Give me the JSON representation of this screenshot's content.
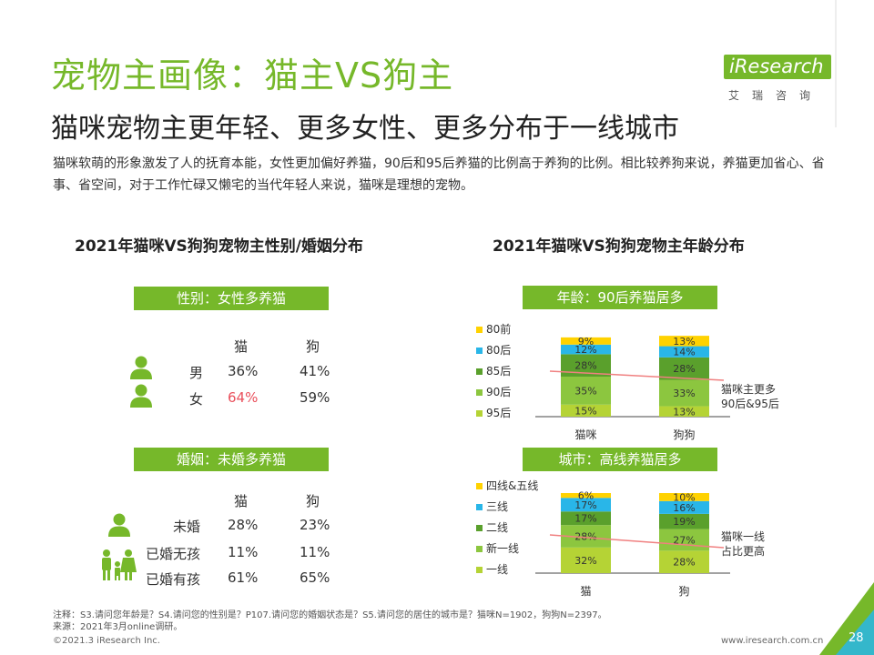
{
  "header": {
    "title": "宠物主画像：猫主VS狗主",
    "subtitle": "猫咪宠物主更年轻、更多女性、更多分布于一线城市",
    "intro": "猫咪软萌的形象激发了人的抚育本能，女性更加偏好养猫，90后和95后养猫的比例高于养狗的比例。相比较养狗来说，养猫更加省心、省事、省空间，对于工作忙碌又懒宅的当代年轻人来说，猫咪是理想的宠物。"
  },
  "logo": {
    "word": "iResearch",
    "cn": "艾瑞咨询"
  },
  "left_section": {
    "title": "2021年猫咪VS狗狗宠物主性别/婚姻分布",
    "gender": {
      "banner": "性别：女性多养猫",
      "col_cat": "猫",
      "col_dog": "狗",
      "rows": [
        {
          "label": "男",
          "cat": "36%",
          "dog": "41%"
        },
        {
          "label": "女",
          "cat": "64%",
          "dog": "59%"
        }
      ],
      "highlight_color": "#e94f5b"
    },
    "marriage": {
      "banner": "婚姻：未婚多养猫",
      "col_cat": "猫",
      "col_dog": "狗",
      "rows": [
        {
          "label": "未婚",
          "cat": "28%",
          "dog": "23%"
        },
        {
          "label": "已婚无孩",
          "cat": "11%",
          "dog": "11%"
        },
        {
          "label": "已婚有孩",
          "cat": "61%",
          "dog": "65%"
        }
      ]
    }
  },
  "right_section": {
    "title": "2021年猫咪VS狗狗宠物主年龄分布"
  },
  "chart_data": [
    {
      "type": "bar",
      "stacked": true,
      "banner": "年龄：90后养猫居多",
      "categories": [
        "猫咪",
        "狗狗"
      ],
      "series": [
        {
          "name": "95后",
          "color": "#b5d335",
          "values": [
            15,
            13
          ]
        },
        {
          "name": "90后",
          "color": "#8cc63f",
          "values": [
            35,
            33
          ]
        },
        {
          "name": "85后",
          "color": "#5aa02c",
          "values": [
            28,
            28
          ]
        },
        {
          "name": "80后",
          "color": "#29b6e8",
          "values": [
            12,
            14
          ]
        },
        {
          "name": "80前",
          "color": "#ffd200",
          "values": [
            9,
            13
          ]
        }
      ],
      "annotation": "猫咪主更多\n90后&95后",
      "annotation_line_color": "#f08080"
    },
    {
      "type": "bar",
      "stacked": true,
      "banner": "城市：高线养猫居多",
      "categories": [
        "猫",
        "狗"
      ],
      "series": [
        {
          "name": "一线",
          "color": "#b5d335",
          "values": [
            32,
            28
          ]
        },
        {
          "name": "新一线",
          "color": "#8cc63f",
          "values": [
            28,
            27
          ]
        },
        {
          "name": "二线",
          "color": "#5aa02c",
          "values": [
            17,
            19
          ]
        },
        {
          "name": "三线",
          "color": "#29b6e8",
          "values": [
            17,
            16
          ]
        },
        {
          "name": "四线&五线",
          "color": "#ffd200",
          "values": [
            6,
            10
          ]
        }
      ],
      "annotation": "猫咪一线\n占比更高",
      "annotation_line_color": "#f08080"
    }
  ],
  "footer": {
    "note": "注释：S3.请问您年龄是？S4.请问您的性别是？P107.请问您的婚姻状态是？S5.请问您的居住的城市是？猫咪N=1902，狗狗N=2397。",
    "source": "来源：2021年3月online调研。",
    "copyright": "©2021.3 iResearch Inc.",
    "url": "www.iresearch.com.cn",
    "page": "28"
  }
}
